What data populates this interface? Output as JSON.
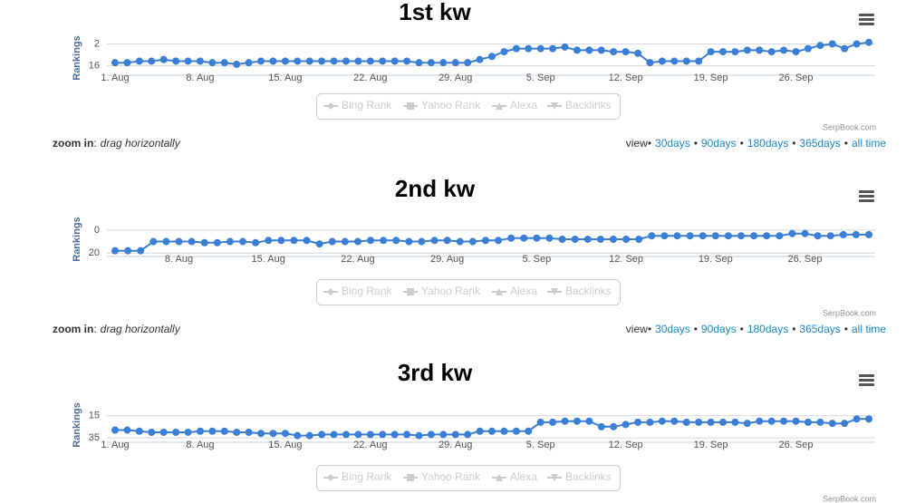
{
  "chart_data": [
    {
      "type": "line",
      "title": "1st kw",
      "y_axis_label": "Rankings",
      "color": "#3a7fd5",
      "reversed": true,
      "categories": [
        "1. Aug",
        null,
        null,
        null,
        null,
        null,
        null,
        "8. Aug",
        null,
        null,
        null,
        null,
        null,
        null,
        "15. Aug",
        null,
        null,
        null,
        null,
        null,
        null,
        "22. Aug",
        null,
        null,
        null,
        null,
        null,
        null,
        "29. Aug",
        null,
        null,
        null,
        null,
        null,
        null,
        "5. Sep",
        null,
        null,
        null,
        null,
        null,
        null,
        "12. Sep",
        null,
        null,
        null,
        null,
        null,
        null,
        "19. Sep",
        null,
        null,
        null,
        null,
        null,
        null,
        "26. Sep",
        null,
        null,
        null,
        null,
        null,
        null
      ],
      "values": [
        14,
        14,
        13,
        13,
        12,
        13,
        13,
        13,
        14,
        14,
        15,
        14,
        13,
        13,
        13,
        13,
        13,
        13,
        13,
        13,
        13,
        13,
        13,
        13,
        13,
        14,
        14,
        14,
        14,
        14,
        12,
        10,
        7,
        5,
        5,
        5,
        5,
        4,
        6,
        6,
        6,
        7,
        7,
        8,
        14,
        13,
        13,
        13,
        13,
        7,
        7,
        7,
        6,
        6,
        7,
        6,
        7,
        5,
        3,
        2,
        5,
        2,
        1
      ],
      "ylim": [
        0,
        22
      ],
      "yticks": [
        2,
        16
      ],
      "grid": true,
      "legend": [
        "Bing Rank",
        "Yahoo Rank",
        "Alexa",
        "Backlinks"
      ],
      "credit": "SerpBook.com"
    },
    {
      "type": "line",
      "title": "2nd kw",
      "y_axis_label": "Rankings",
      "color": "#3a7fd5",
      "reversed": true,
      "categories": [
        null,
        null,
        null,
        null,
        null,
        "8. Aug",
        null,
        null,
        null,
        null,
        null,
        null,
        "15. Aug",
        null,
        null,
        null,
        null,
        null,
        null,
        "22. Aug",
        null,
        null,
        null,
        null,
        null,
        null,
        "29. Aug",
        null,
        null,
        null,
        null,
        null,
        null,
        "5. Sep",
        null,
        null,
        null,
        null,
        null,
        null,
        "12. Sep",
        null,
        null,
        null,
        null,
        null,
        null,
        "19. Sep",
        null,
        null,
        null,
        null,
        null,
        null,
        "26. Sep",
        null,
        null,
        null,
        null,
        null
      ],
      "values": [
        18,
        18,
        18,
        10,
        10,
        10,
        10,
        11,
        11,
        10,
        10,
        11,
        9,
        9,
        9,
        9,
        12,
        10,
        10,
        10,
        9,
        9,
        9,
        10,
        10,
        9,
        9,
        10,
        10,
        9,
        9,
        7,
        7,
        7,
        7,
        8,
        8,
        8,
        8,
        8,
        8,
        8,
        5,
        5,
        5,
        5,
        5,
        5,
        5,
        5,
        5,
        5,
        5,
        3,
        3,
        5,
        5,
        4,
        4,
        4
      ],
      "ylim": [
        -7,
        23
      ],
      "yticks": [
        0,
        20
      ],
      "grid": true,
      "legend": [
        "Bing Rank",
        "Yahoo Rank",
        "Alexa",
        "Backlinks"
      ],
      "credit": "SerpBook.com"
    },
    {
      "type": "line",
      "title": "3rd kw",
      "y_axis_label": "Rankings",
      "color": "#3a7fd5",
      "reversed": true,
      "categories": [
        "1. Aug",
        null,
        null,
        null,
        null,
        null,
        null,
        "8. Aug",
        null,
        null,
        null,
        null,
        null,
        null,
        "15. Aug",
        null,
        null,
        null,
        null,
        null,
        null,
        "22. Aug",
        null,
        null,
        null,
        null,
        null,
        null,
        "29. Aug",
        null,
        null,
        null,
        null,
        null,
        null,
        "5. Sep",
        null,
        null,
        null,
        null,
        null,
        null,
        "12. Sep",
        null,
        null,
        null,
        null,
        null,
        null,
        "19. Sep",
        null,
        null,
        null,
        null,
        null,
        null,
        "26. Sep",
        null,
        null,
        null,
        null,
        null,
        null
      ],
      "values": [
        28,
        28,
        29,
        30,
        30,
        30,
        30,
        29,
        29,
        29,
        30,
        30,
        31,
        31,
        31,
        33,
        33,
        32,
        32,
        32,
        32,
        32,
        32,
        32,
        32,
        33,
        32,
        32,
        32,
        32,
        29,
        29,
        29,
        29,
        29,
        21,
        21,
        20,
        20,
        20,
        25,
        25,
        23,
        21,
        21,
        20,
        20,
        21,
        21,
        21,
        21,
        21,
        22,
        20,
        20,
        20,
        20,
        21,
        21,
        22,
        22,
        18,
        18
      ],
      "ylim": [
        8,
        39
      ],
      "yticks": [
        15,
        35
      ],
      "grid": true,
      "legend": [
        "Bing Rank",
        "Yahoo Rank",
        "Alexa",
        "Backlinks"
      ],
      "credit": "SerpBook.com"
    }
  ],
  "controls": {
    "zoom_label": "zoom in",
    "colon": ":",
    "zoom_hint": "drag horizontally",
    "view_label": "view",
    "separator": "•",
    "links": [
      "30days",
      "90days",
      "180days",
      "365days",
      "all time"
    ]
  }
}
